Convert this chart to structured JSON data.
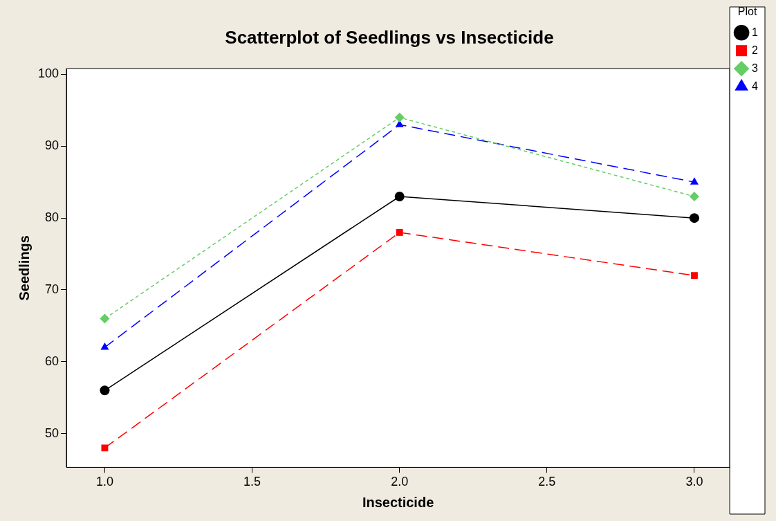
{
  "chart_data": {
    "type": "line",
    "title": "Scatterplot of Seedlings vs Insecticide",
    "xlabel": "Insecticide",
    "ylabel": "Seedlings",
    "legend_title": "Plot",
    "x": [
      1,
      2,
      3
    ],
    "series": [
      {
        "name": "1",
        "color": "#000000",
        "values": [
          56,
          83,
          80
        ],
        "marker": "circle",
        "line_style": "solid"
      },
      {
        "name": "2",
        "color": "#ff0000",
        "values": [
          48,
          78,
          72
        ],
        "marker": "square",
        "line_style": "dashed"
      },
      {
        "name": "3",
        "color": "#66cc66",
        "values": [
          66,
          94,
          83
        ],
        "marker": "diamond",
        "line_style": "dotted"
      },
      {
        "name": "4",
        "color": "#0000ff",
        "values": [
          62,
          93,
          85
        ],
        "marker": "triangle",
        "line_style": "dashed"
      }
    ],
    "xlim": [
      0.87,
      3.12
    ],
    "xticks": [
      {
        "value": 1,
        "label": "1.0"
      },
      {
        "value": 1.5,
        "label": "1.5"
      },
      {
        "value": 2,
        "label": "2.0"
      },
      {
        "value": 2.5,
        "label": "2.5"
      },
      {
        "value": 3,
        "label": "3.0"
      }
    ],
    "ylim": [
      45.3,
      100.8
    ],
    "yticks": [
      50,
      60,
      70,
      80,
      90,
      100
    ],
    "grid": false,
    "legend": "top right"
  }
}
